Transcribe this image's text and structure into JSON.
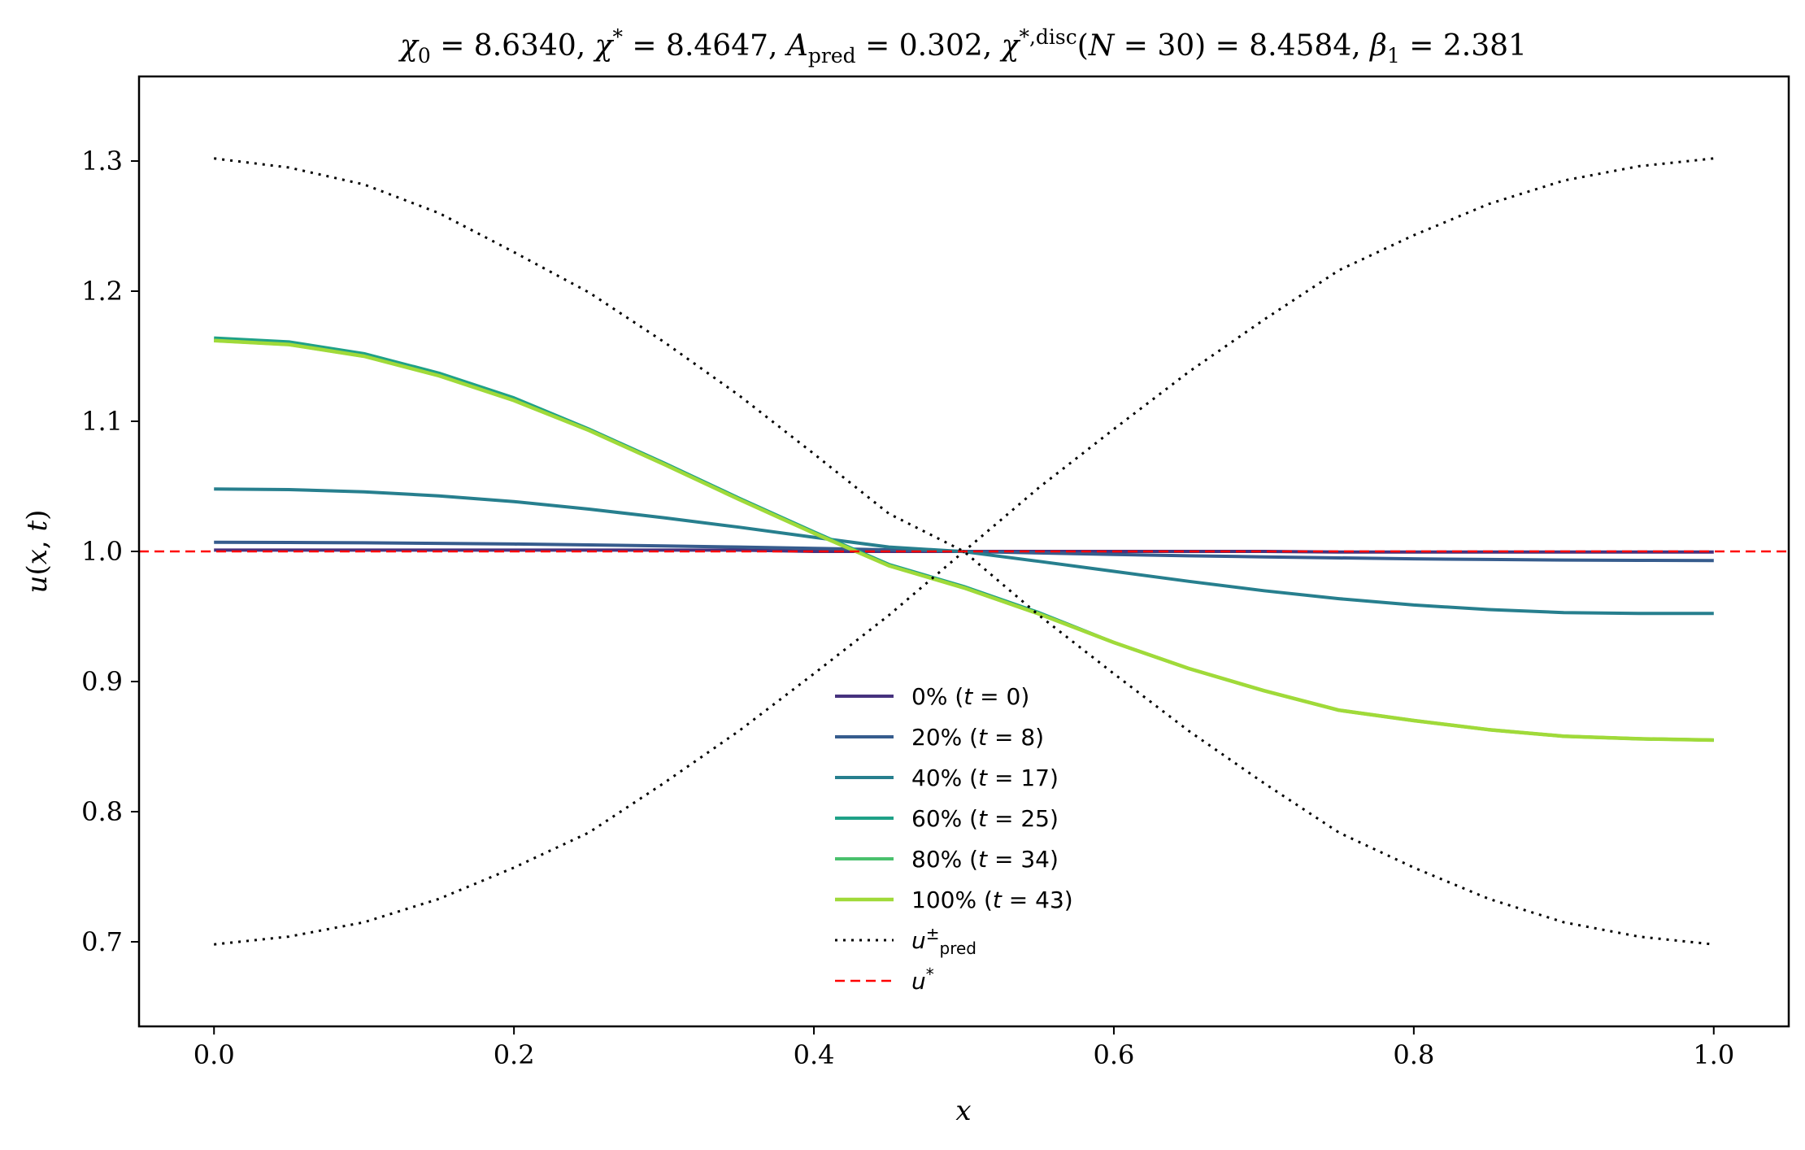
{
  "chart_data": {
    "type": "line",
    "title": "χ₀ = 8.6340,  χ* = 8.4647,  A_pred = 0.302,  χ*,disc(N = 30) = 8.4584,  β₁ = 2.381",
    "title_parts": [
      {
        "t": "χ",
        "i": true
      },
      {
        "t": "0",
        "sub": true
      },
      {
        "t": " = 8.6340,  "
      },
      {
        "t": "χ",
        "i": true
      },
      {
        "t": "*",
        "sup": true
      },
      {
        "t": " = 8.4647,  "
      },
      {
        "t": "A",
        "i": true
      },
      {
        "t": "pred",
        "sub": true
      },
      {
        "t": " = 0.302,  "
      },
      {
        "t": "χ",
        "i": true
      },
      {
        "t": "*,disc",
        "sup": true
      },
      {
        "t": "("
      },
      {
        "t": "N",
        "i": true
      },
      {
        "t": " = 30) = 8.4584,  "
      },
      {
        "t": "β",
        "i": true
      },
      {
        "t": "1",
        "sub": true
      },
      {
        "t": " = 2.381"
      }
    ],
    "xlabel": "x",
    "ylabel": "u(x, t)",
    "xlim": [
      -0.05,
      1.05
    ],
    "ylim": [
      0.635,
      1.365
    ],
    "xticks": [
      0.0,
      0.2,
      0.4,
      0.6,
      0.8,
      1.0
    ],
    "xtick_labels": [
      "0.0",
      "0.2",
      "0.4",
      "0.6",
      "0.8",
      "1.0"
    ],
    "yticks": [
      0.7,
      0.8,
      0.9,
      1.0,
      1.1,
      1.2,
      1.3
    ],
    "ytick_labels": [
      "0.7",
      "0.8",
      "0.9",
      "1.0",
      "1.1",
      "1.2",
      "1.3"
    ],
    "grid": false,
    "legend_position": "lower-center",
    "x": [
      0.0,
      0.05,
      0.1,
      0.15,
      0.2,
      0.25,
      0.3,
      0.35,
      0.4,
      0.45,
      0.5,
      0.55,
      0.6,
      0.65,
      0.7,
      0.75,
      0.8,
      0.85,
      0.9,
      0.95,
      1.0
    ],
    "series": [
      {
        "name": "0% (t = 0)",
        "label_parts": [
          {
            "t": "0% "
          },
          {
            "t": "("
          },
          {
            "t": "t",
            "i": true
          },
          {
            "t": " = 0)"
          }
        ],
        "color": "#46327e",
        "width": 4,
        "dash": "",
        "values": [
          1.001,
          1.001,
          1.001,
          1.001,
          1.001,
          1.001,
          1.001,
          1.001,
          1.0,
          1.0,
          1.0,
          1.0,
          1.0,
          1.0,
          1.0,
          0.9995,
          0.9995,
          0.9995,
          0.9995,
          0.9995,
          0.9995
        ]
      },
      {
        "name": "20% (t = 8)",
        "label_parts": [
          {
            "t": "20% "
          },
          {
            "t": "("
          },
          {
            "t": "t",
            "i": true
          },
          {
            "t": " = 8)"
          }
        ],
        "color": "#365c8d",
        "width": 4,
        "dash": "",
        "values": [
          1.007,
          1.0069,
          1.0066,
          1.0062,
          1.0057,
          1.005,
          1.0042,
          1.0034,
          1.0024,
          1.0012,
          1.0,
          0.9988,
          0.9976,
          0.9966,
          0.9958,
          0.995,
          0.9943,
          0.9938,
          0.9934,
          0.9931,
          0.993
        ]
      },
      {
        "name": "40% (t = 17)",
        "label_parts": [
          {
            "t": "40% "
          },
          {
            "t": "("
          },
          {
            "t": "t",
            "i": true
          },
          {
            "t": " = 17)"
          }
        ],
        "color": "#277f8e",
        "width": 4,
        "dash": "",
        "values": [
          1.048,
          1.0475,
          1.0458,
          1.0427,
          1.0383,
          1.0325,
          1.0259,
          1.0186,
          1.0109,
          1.0034,
          0.9998,
          0.9924,
          0.9847,
          0.977,
          0.9698,
          0.9637,
          0.9588,
          0.9553,
          0.953,
          0.9523,
          0.9523
        ]
      },
      {
        "name": "60% (t = 25)",
        "label_parts": [
          {
            "t": "60% "
          },
          {
            "t": "("
          },
          {
            "t": "t",
            "i": true
          },
          {
            "t": " = 25)"
          }
        ],
        "color": "#1fa187",
        "width": 4,
        "dash": "",
        "values": [
          1.164,
          1.161,
          1.152,
          1.137,
          1.118,
          1.094,
          1.068,
          1.041,
          1.015,
          0.99,
          0.973,
          0.953,
          0.93,
          0.91,
          0.893,
          0.878,
          0.87,
          0.863,
          0.858,
          0.856,
          0.855
        ]
      },
      {
        "name": "80% (t = 34)",
        "label_parts": [
          {
            "t": "80% "
          },
          {
            "t": "("
          },
          {
            "t": "t",
            "i": true
          },
          {
            "t": " = 34)"
          }
        ],
        "color": "#4ac16d",
        "width": 4,
        "dash": "",
        "values": [
          1.162,
          1.159,
          1.15,
          1.135,
          1.116,
          1.093,
          1.067,
          1.04,
          1.014,
          0.989,
          0.972,
          0.952,
          0.93,
          0.91,
          0.893,
          0.878,
          0.87,
          0.863,
          0.858,
          0.856,
          0.855
        ]
      },
      {
        "name": "100% (t = 43)",
        "label_parts": [
          {
            "t": "100% "
          },
          {
            "t": "("
          },
          {
            "t": "t",
            "i": true
          },
          {
            "t": " = 43)"
          }
        ],
        "color": "#a0da39",
        "width": 4.5,
        "dash": "",
        "values": [
          1.162,
          1.159,
          1.15,
          1.135,
          1.116,
          1.093,
          1.067,
          1.04,
          1.014,
          0.989,
          0.972,
          0.952,
          0.93,
          0.91,
          0.893,
          0.878,
          0.87,
          0.863,
          0.858,
          0.856,
          0.855
        ]
      },
      {
        "name": "u±pred",
        "label_parts": [
          {
            "t": "u",
            "i": true
          },
          {
            "t": "±",
            "sup": true
          },
          {
            "t": "pred",
            "sub": true
          }
        ],
        "color": "#000000",
        "width": 3,
        "dash": "3,7",
        "values": [
          1.302,
          1.295,
          1.282,
          1.26,
          1.23,
          1.199,
          1.161,
          1.12,
          1.075,
          1.029,
          1.0,
          0.951,
          0.906,
          0.862,
          0.822,
          0.784,
          0.757,
          0.733,
          0.715,
          0.704,
          0.698
        ]
      },
      {
        "name": "u±pred-lower",
        "color": "#000000",
        "width": 3,
        "dash": "3,7",
        "legend": false,
        "values": [
          0.698,
          0.704,
          0.715,
          0.733,
          0.757,
          0.784,
          0.822,
          0.862,
          0.906,
          0.951,
          1.0,
          1.049,
          1.094,
          1.138,
          1.178,
          1.216,
          1.243,
          1.267,
          1.285,
          1.296,
          1.302
        ]
      },
      {
        "name": "u*",
        "label_parts": [
          {
            "t": "u",
            "i": true
          },
          {
            "t": "*",
            "sup": true
          }
        ],
        "color": "#ff0000",
        "width": 2.5,
        "dash": "12,7",
        "hline": 1.0
      }
    ]
  }
}
